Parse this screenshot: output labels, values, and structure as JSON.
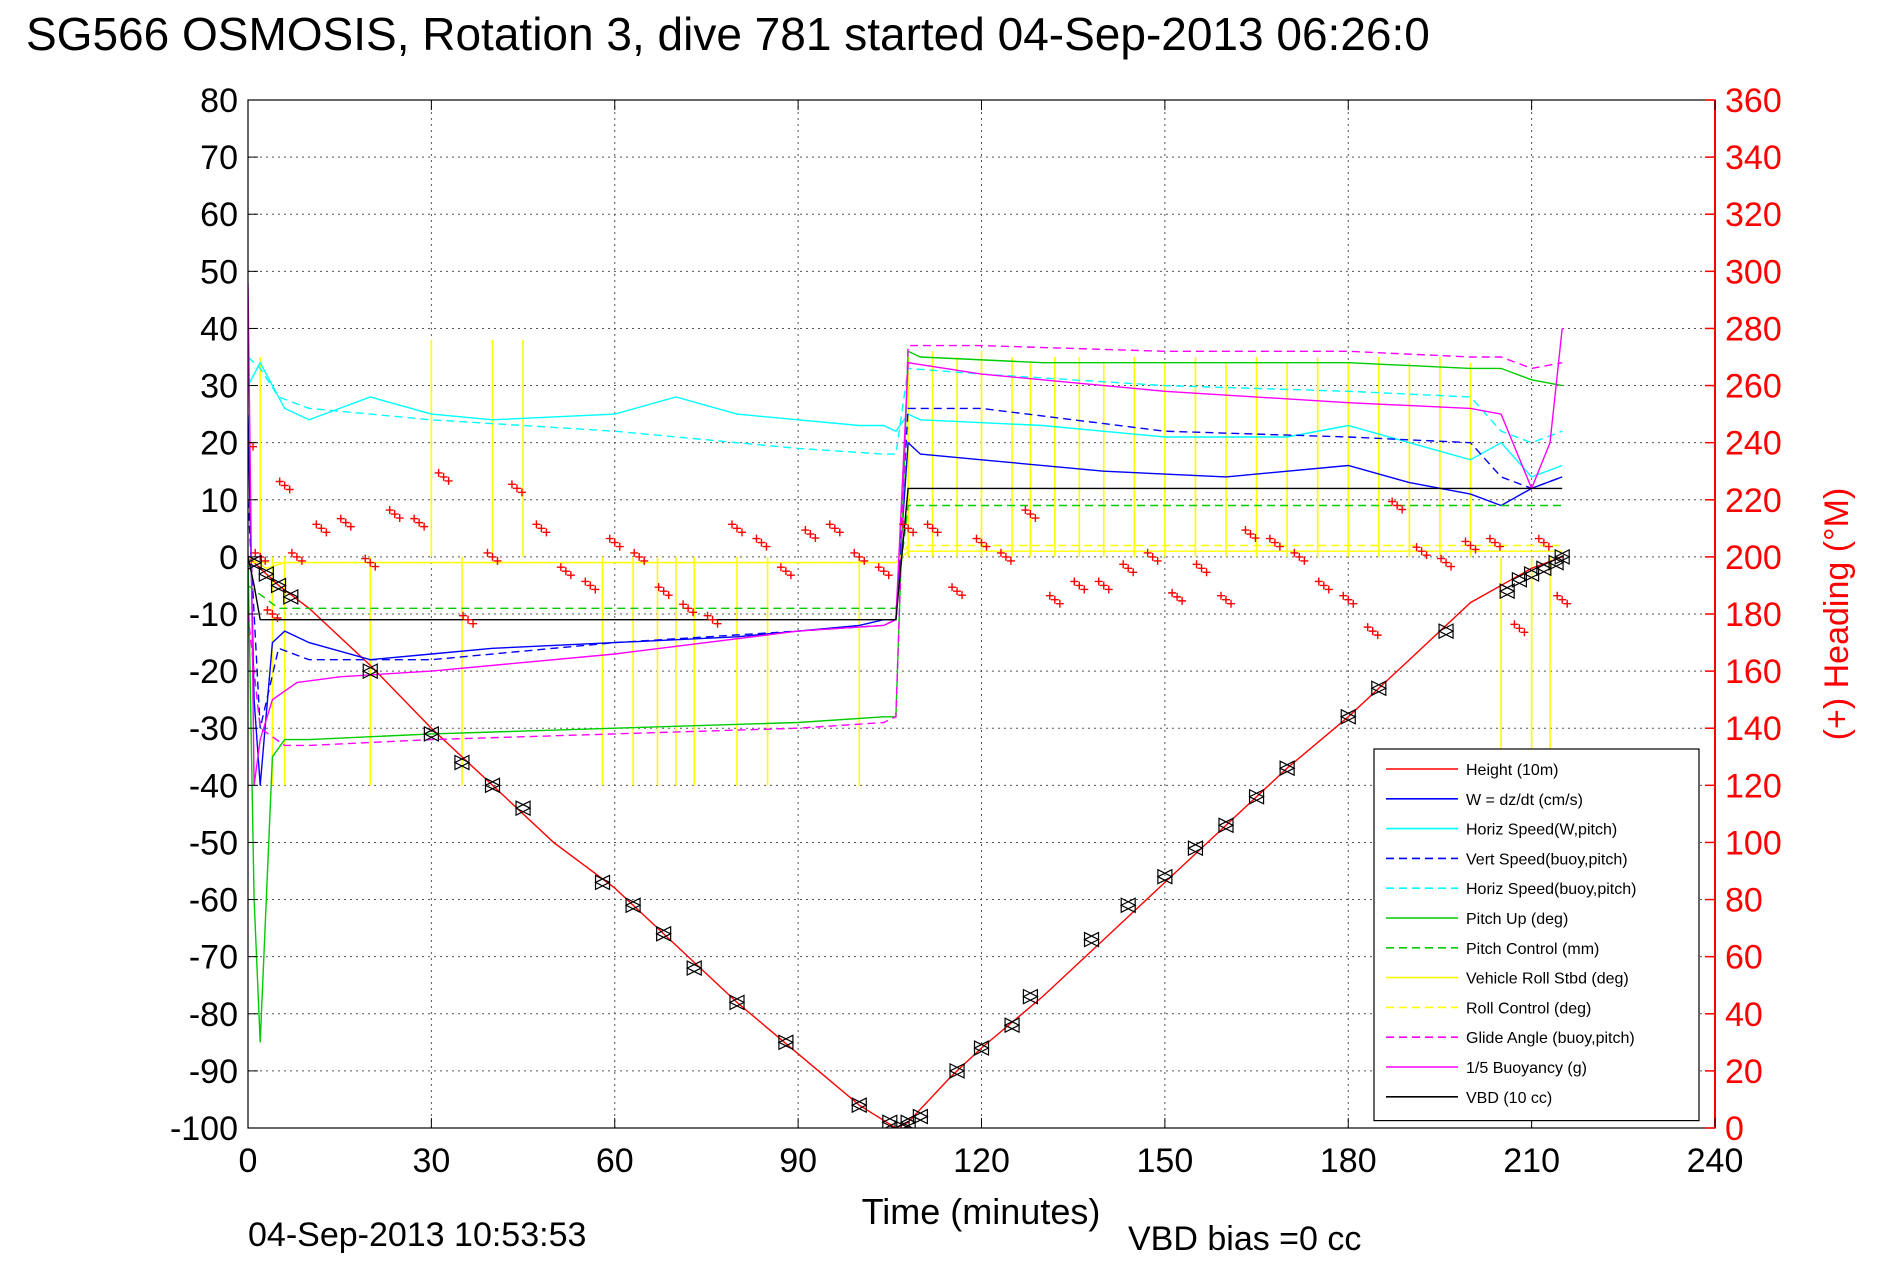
{
  "chart_data": {
    "type": "line",
    "title": "SG566 OSMOSIS, Rotation 3, dive 781 started 04-Sep-2013 06:26:0",
    "xlabel": "Time (minutes)",
    "ylabel": "",
    "y2label": "(+) Heading (°M)",
    "xlim": [
      0,
      240
    ],
    "ylim": [
      -100,
      80
    ],
    "y2lim": [
      0,
      360
    ],
    "xticks": [
      "0",
      "30",
      "60",
      "90",
      "120",
      "150",
      "180",
      "210",
      "240"
    ],
    "yticks": [
      "80",
      "70",
      "60",
      "50",
      "40",
      "30",
      "20",
      "10",
      "0",
      "-10",
      "-20",
      "-30",
      "-40",
      "-50",
      "-60",
      "-70",
      "-80",
      "-90",
      "-100"
    ],
    "y2ticks": [
      "360",
      "340",
      "320",
      "300",
      "280",
      "260",
      "240",
      "220",
      "200",
      "180",
      "160",
      "140",
      "120",
      "100",
      "80",
      "60",
      "40",
      "20",
      "0"
    ],
    "grid": true,
    "legend_position": "bottom-right",
    "footer_left": "04-Sep-2013 10:53:53",
    "footer_right": "VBD bias =0 cc",
    "colors": {
      "red": "#ff0000",
      "blue": "#0000ff",
      "cyan": "#00ffff",
      "green": "#00cc00",
      "yellow": "#ffff00",
      "magenta": "#ff00ff",
      "black": "#000000"
    },
    "series": [
      {
        "name": "Height (10m)",
        "color": "#ff0000",
        "dash": "solid",
        "x": [
          0,
          5,
          10,
          20,
          30,
          40,
          50,
          60,
          70,
          80,
          90,
          100,
          106,
          108,
          115,
          120,
          130,
          140,
          150,
          160,
          170,
          180,
          190,
          200,
          210,
          215
        ],
        "y": [
          0,
          -5,
          -9,
          -19,
          -30,
          -40,
          -50,
          -58,
          -68,
          -78,
          -87,
          -96,
          -100,
          -99,
          -91,
          -86,
          -77,
          -67,
          -57,
          -47,
          -37,
          -28,
          -18,
          -8,
          -2,
          0
        ]
      },
      {
        "name": "W = dz/dt (cm/s)",
        "color": "#0000ff",
        "dash": "solid",
        "x": [
          0,
          1,
          2,
          4,
          6,
          10,
          20,
          30,
          40,
          60,
          80,
          100,
          104,
          106,
          108,
          110,
          120,
          140,
          160,
          180,
          190,
          200,
          205,
          210,
          215
        ],
        "y": [
          25,
          -25,
          -40,
          -15,
          -13,
          -15,
          -18,
          -17,
          -16,
          -15,
          -14,
          -12,
          -11,
          -11,
          20,
          18,
          17,
          15,
          14,
          16,
          13,
          11,
          9,
          12,
          14
        ]
      },
      {
        "name": "Horiz Speed(W,pitch)",
        "color": "#00ffff",
        "dash": "solid",
        "x": [
          0,
          2,
          6,
          10,
          20,
          30,
          40,
          60,
          70,
          80,
          90,
          100,
          104,
          106,
          108,
          110,
          130,
          150,
          170,
          180,
          190,
          200,
          205,
          210,
          215
        ],
        "y": [
          30,
          34,
          26,
          24,
          28,
          25,
          24,
          25,
          28,
          25,
          24,
          23,
          23,
          22,
          25,
          24,
          23,
          21,
          21,
          23,
          20,
          17,
          20,
          14,
          16
        ]
      },
      {
        "name": "Vert Speed(buoy,pitch)",
        "color": "#0000ff",
        "dash": "dashed",
        "x": [
          0,
          2,
          5,
          10,
          30,
          60,
          90,
          104,
          106,
          108,
          120,
          150,
          180,
          200,
          205,
          210,
          215
        ],
        "y": [
          10,
          -30,
          -16,
          -18,
          -18,
          -15,
          -13,
          -12,
          -11,
          26,
          26,
          22,
          21,
          20,
          14,
          12,
          14
        ]
      },
      {
        "name": "Horiz Speed(buoy,pitch)",
        "color": "#00ffff",
        "dash": "dashed",
        "x": [
          0,
          2,
          5,
          10,
          30,
          60,
          90,
          104,
          106,
          108,
          120,
          150,
          180,
          200,
          205,
          210,
          215
        ],
        "y": [
          35,
          33,
          28,
          26,
          24,
          22,
          19,
          18,
          18,
          33,
          32,
          30,
          29,
          28,
          22,
          20,
          22
        ]
      },
      {
        "name": "Pitch Up (deg)",
        "color": "#00cc00",
        "dash": "solid",
        "x": [
          0,
          1,
          2,
          4,
          6,
          10,
          30,
          60,
          90,
          104,
          106,
          108,
          110,
          130,
          150,
          180,
          200,
          205,
          210,
          215
        ],
        "y": [
          0,
          -60,
          -85,
          -35,
          -32,
          -32,
          -31,
          -30,
          -29,
          -28,
          -28,
          36,
          35,
          34,
          34,
          34,
          33,
          33,
          31,
          30
        ]
      },
      {
        "name": "Pitch Control (mm)",
        "color": "#00cc00",
        "dash": "dashed",
        "x": [
          0,
          5,
          104,
          106,
          108,
          215
        ],
        "y": [
          -5,
          -9,
          -9,
          -9,
          9,
          9
        ]
      },
      {
        "name": "Vehicle Roll Stbd (deg)",
        "color": "#ffff00",
        "dash": "solid",
        "x": [
          0,
          3,
          6,
          10,
          30,
          60,
          90,
          104,
          106,
          108,
          120,
          150,
          180,
          200,
          210,
          215
        ],
        "y": [
          0,
          -2,
          -1,
          -1,
          -1,
          -1,
          -1,
          -1,
          -1,
          1,
          1,
          1,
          1,
          1,
          1,
          1
        ]
      },
      {
        "name": "Roll Control (deg)",
        "color": "#ffff00",
        "dash": "dashed",
        "x": [
          0,
          104,
          106,
          108,
          215
        ],
        "y": [
          -1,
          -1,
          -1,
          2,
          2
        ]
      },
      {
        "name": "Glide Angle (buoy,pitch)",
        "color": "#ff00ff",
        "dash": "dashed",
        "x": [
          0,
          2,
          6,
          10,
          30,
          60,
          90,
          104,
          106,
          108,
          120,
          150,
          180,
          200,
          205,
          210,
          215
        ],
        "y": [
          -10,
          -30,
          -33,
          -33,
          -32,
          -31,
          -30,
          -29,
          -28,
          37,
          37,
          36,
          36,
          35,
          35,
          33,
          34
        ]
      },
      {
        "name": "1/5 Buoyancy (g)",
        "color": "#ff00ff",
        "dash": "solid",
        "x": [
          0,
          1,
          2,
          4,
          8,
          15,
          30,
          60,
          90,
          104,
          106,
          108,
          120,
          150,
          180,
          200,
          205,
          210,
          213,
          215
        ],
        "y": [
          48,
          -40,
          -32,
          -25,
          -22,
          -21,
          -20,
          -17,
          -13,
          -12,
          -11,
          34,
          32,
          29,
          27,
          26,
          25,
          12,
          20,
          40
        ]
      },
      {
        "name": "VBD (10 cc)",
        "color": "#000000",
        "dash": "solid",
        "x": [
          0,
          1,
          2,
          104,
          106,
          108,
          205,
          210,
          215
        ],
        "y": [
          0,
          -5,
          -11,
          -11,
          -11,
          12,
          12,
          12,
          12
        ]
      }
    ],
    "heading_series": {
      "name": "Heading",
      "color": "#ff0000",
      "marker": "+",
      "x": [
        0,
        2,
        4,
        6,
        8,
        12,
        16,
        20,
        24,
        28,
        32,
        36,
        40,
        44,
        48,
        52,
        56,
        60,
        64,
        68,
        72,
        76,
        80,
        84,
        88,
        92,
        96,
        100,
        104,
        108,
        112,
        116,
        120,
        124,
        128,
        132,
        136,
        140,
        144,
        148,
        152,
        156,
        160,
        164,
        168,
        172,
        176,
        180,
        184,
        188,
        192,
        196,
        200,
        204,
        208,
        212,
        215
      ],
      "y2": [
        240,
        200,
        180,
        225,
        200,
        210,
        212,
        198,
        215,
        212,
        228,
        178,
        200,
        224,
        210,
        195,
        190,
        205,
        200,
        188,
        182,
        178,
        210,
        205,
        195,
        208,
        210,
        200,
        195,
        210,
        210,
        188,
        205,
        200,
        215,
        185,
        190,
        190,
        196,
        200,
        186,
        196,
        185,
        208,
        205,
        200,
        190,
        185,
        174,
        218,
        202,
        198,
        204,
        205,
        175,
        205,
        185
      ]
    },
    "depth_markers": {
      "x": [
        1,
        3,
        5,
        7,
        20,
        30,
        35,
        40,
        45,
        58,
        63,
        68,
        73,
        80,
        88,
        100,
        105,
        107,
        108,
        110,
        116,
        120,
        125,
        128,
        138,
        144,
        150,
        155,
        160,
        165,
        170,
        180,
        185,
        196,
        206,
        208,
        210,
        212,
        214,
        215
      ],
      "y": [
        -1,
        -3,
        -5,
        -7,
        -20,
        -31,
        -36,
        -40,
        -44,
        -57,
        -61,
        -66,
        -72,
        -78,
        -85,
        -96,
        -99,
        -100,
        -99,
        -98,
        -90,
        -86,
        -82,
        -77,
        -67,
        -61,
        -56,
        -51,
        -47,
        -42,
        -37,
        -28,
        -23,
        -13,
        -6,
        -4,
        -3,
        -2,
        -1,
        0
      ]
    },
    "yellow_spikes": {
      "x": [
        2,
        4,
        6,
        20,
        30,
        35,
        40,
        45,
        58,
        63,
        67,
        70,
        73,
        80,
        85,
        100,
        108,
        112,
        116,
        120,
        125,
        128,
        132,
        136,
        140,
        145,
        150,
        155,
        160,
        165,
        170,
        175,
        180,
        185,
        190,
        195,
        200,
        205,
        210,
        213
      ],
      "peak": [
        35,
        -40,
        -40,
        -40,
        38,
        -40,
        38,
        38,
        -40,
        -40,
        -40,
        -40,
        -40,
        -40,
        -40,
        -40,
        35,
        36,
        35,
        36,
        35,
        34,
        35,
        35,
        34,
        35,
        34,
        35,
        34,
        35,
        34,
        35,
        34,
        35,
        34,
        35,
        34,
        -40,
        -40,
        -40
      ]
    }
  }
}
